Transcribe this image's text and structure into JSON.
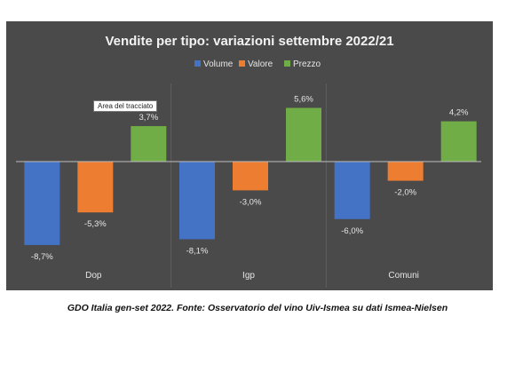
{
  "caption": "GDO Italia gen-set 2022. Fonte: Osservatorio del vino Uiv-Ismea su dati Ismea-Nielsen",
  "tooltip": "Area del tracciato",
  "chart_data": {
    "type": "bar",
    "title": "Vendite per tipo: variazioni settembre 2022/21",
    "categories": [
      "Dop",
      "Igp",
      "Comuni"
    ],
    "series": [
      {
        "name": "Volume",
        "color": "#4472c4",
        "values": [
          -8.7,
          -8.1,
          -6.0
        ],
        "labels": [
          "-8,7%",
          "-8,1%",
          "-6,0%"
        ]
      },
      {
        "name": "Valore",
        "color": "#ed7d31",
        "values": [
          -5.3,
          -3.0,
          -2.0
        ],
        "labels": [
          "-5,3%",
          "-3,0%",
          "-2,0%"
        ]
      },
      {
        "name": "Prezzo",
        "color": "#70ad47",
        "values": [
          3.7,
          5.6,
          4.2
        ],
        "labels": [
          "3,7%",
          "5,6%",
          "4,2%"
        ]
      }
    ],
    "ylim": [
      -10,
      7
    ],
    "legend_position": "top",
    "gridlines": "vertical category separators",
    "background": "#4a4a4a"
  }
}
